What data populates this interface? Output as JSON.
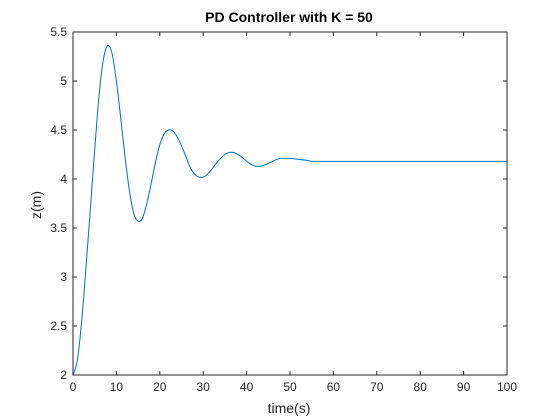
{
  "chart_data": {
    "type": "line",
    "title": "PD Controller with K = 50",
    "xlabel": "time(s)",
    "ylabel": "z(m)",
    "xlim": [
      0,
      100
    ],
    "ylim": [
      2,
      5.5
    ],
    "xticks": [
      0,
      10,
      20,
      30,
      40,
      50,
      60,
      70,
      80,
      90,
      100
    ],
    "yticks": [
      2,
      2.5,
      3,
      3.5,
      4,
      4.5,
      5,
      5.5
    ],
    "xtick_labels": [
      "0",
      "10",
      "20",
      "30",
      "40",
      "50",
      "60",
      "70",
      "80",
      "90",
      "100"
    ],
    "ytick_labels": [
      "2",
      "2.5",
      "3",
      "3.5",
      "4",
      "4.5",
      "5",
      "5.5"
    ],
    "grid": false,
    "series": [
      {
        "color": "#0072BD",
        "x": [
          0,
          1,
          2,
          3,
          4,
          5,
          6,
          7,
          8,
          9,
          10,
          11,
          12,
          13,
          14,
          15,
          16,
          17,
          18,
          19,
          20,
          21,
          22,
          23,
          24,
          25,
          26,
          27,
          28,
          29,
          30,
          31,
          32,
          33,
          34,
          35,
          36,
          37,
          38,
          39,
          40,
          41,
          42,
          43,
          44,
          45,
          46,
          47,
          48,
          49,
          50,
          52,
          54,
          55,
          56,
          58,
          60,
          62,
          64,
          66,
          68,
          70,
          75,
          80,
          85,
          90,
          95,
          100
        ],
        "y": [
          2.0,
          2.15,
          2.55,
          3.1,
          3.7,
          4.3,
          4.85,
          5.22,
          5.36,
          5.28,
          5.0,
          4.62,
          4.22,
          3.88,
          3.65,
          3.57,
          3.6,
          3.75,
          3.95,
          4.17,
          4.35,
          4.46,
          4.5,
          4.49,
          4.43,
          4.34,
          4.23,
          4.12,
          4.05,
          4.02,
          4.02,
          4.05,
          4.1,
          4.16,
          4.21,
          4.25,
          4.27,
          4.27,
          4.25,
          4.22,
          4.18,
          4.15,
          4.13,
          4.13,
          4.14,
          4.16,
          4.18,
          4.2,
          4.21,
          4.21,
          4.21,
          4.2,
          4.19,
          4.18,
          4.18,
          4.18,
          4.18,
          4.18,
          4.18,
          4.18,
          4.18,
          4.18,
          4.18,
          4.18,
          4.18,
          4.18,
          4.18,
          4.18
        ]
      }
    ]
  }
}
